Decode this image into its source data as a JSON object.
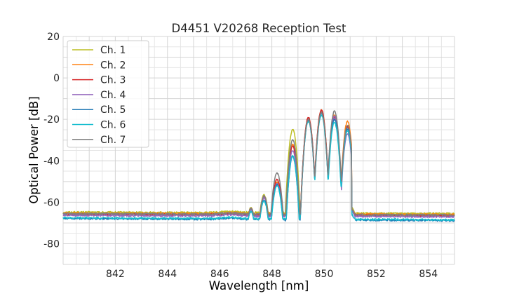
{
  "chart_data": {
    "type": "line",
    "title": "D4451 V20268 Reception Test",
    "xlabel": "Wavelength [nm]",
    "ylabel": "Optical Power [dB]",
    "xlim": [
      840,
      855
    ],
    "ylim": [
      -90,
      20
    ],
    "xticks": [
      842,
      844,
      846,
      848,
      850,
      852,
      854
    ],
    "yticks": [
      20,
      0,
      -20,
      -40,
      -60,
      -80
    ],
    "grid": true,
    "legend_position": "top-left",
    "peaks": [
      {
        "x": 847.2,
        "note": "side lobe"
      },
      {
        "x": 847.7
      },
      {
        "x": 848.2
      },
      {
        "x": 848.8
      },
      {
        "x": 849.4
      },
      {
        "x": 849.9
      },
      {
        "x": 850.4
      },
      {
        "x": 850.9
      }
    ],
    "series": [
      {
        "name": "Ch. 1",
        "color": "#bcbd22",
        "baseline_left": -64.8,
        "baseline_right": -65.5,
        "peak_values": [
          -62.5,
          -56.5,
          -50.5,
          -25.0,
          -19.5,
          -17.0,
          -18.5,
          -23.0
        ]
      },
      {
        "name": "Ch. 2",
        "color": "#ff7f0e",
        "baseline_left": -65.3,
        "baseline_right": -66.0,
        "peak_values": [
          -63.0,
          -57.0,
          -50.0,
          -32.0,
          -19.5,
          -15.5,
          -18.0,
          -21.0
        ]
      },
      {
        "name": "Ch. 3",
        "color": "#d62728",
        "baseline_left": -65.8,
        "baseline_right": -66.5,
        "peak_values": [
          -63.0,
          -57.5,
          -49.0,
          -33.0,
          -19.0,
          -15.5,
          -19.0,
          -23.5
        ]
      },
      {
        "name": "Ch. 4",
        "color": "#9467bd",
        "baseline_left": -66.3,
        "baseline_right": -67.0,
        "peak_values": [
          -63.5,
          -58.0,
          -51.0,
          -35.0,
          -20.5,
          -17.0,
          -18.5,
          -27.0
        ]
      },
      {
        "name": "Ch. 5",
        "color": "#1f77b4",
        "baseline_left": -67.8,
        "baseline_right": -68.8,
        "peak_values": [
          -64.5,
          -59.0,
          -51.5,
          -38.0,
          -20.5,
          -17.0,
          -20.0,
          -24.5
        ]
      },
      {
        "name": "Ch. 6",
        "color": "#17becf",
        "baseline_left": -67.5,
        "baseline_right": -68.5,
        "peak_values": [
          -64.5,
          -59.5,
          -52.0,
          -37.5,
          -21.0,
          -18.0,
          -21.5,
          -25.5
        ]
      },
      {
        "name": "Ch. 7",
        "color": "#7f7f7f",
        "baseline_left": -65.5,
        "baseline_right": -66.2,
        "peak_values": [
          -63.0,
          -57.0,
          -46.0,
          -30.0,
          -20.0,
          -16.5,
          -16.0,
          -23.0
        ]
      }
    ]
  }
}
